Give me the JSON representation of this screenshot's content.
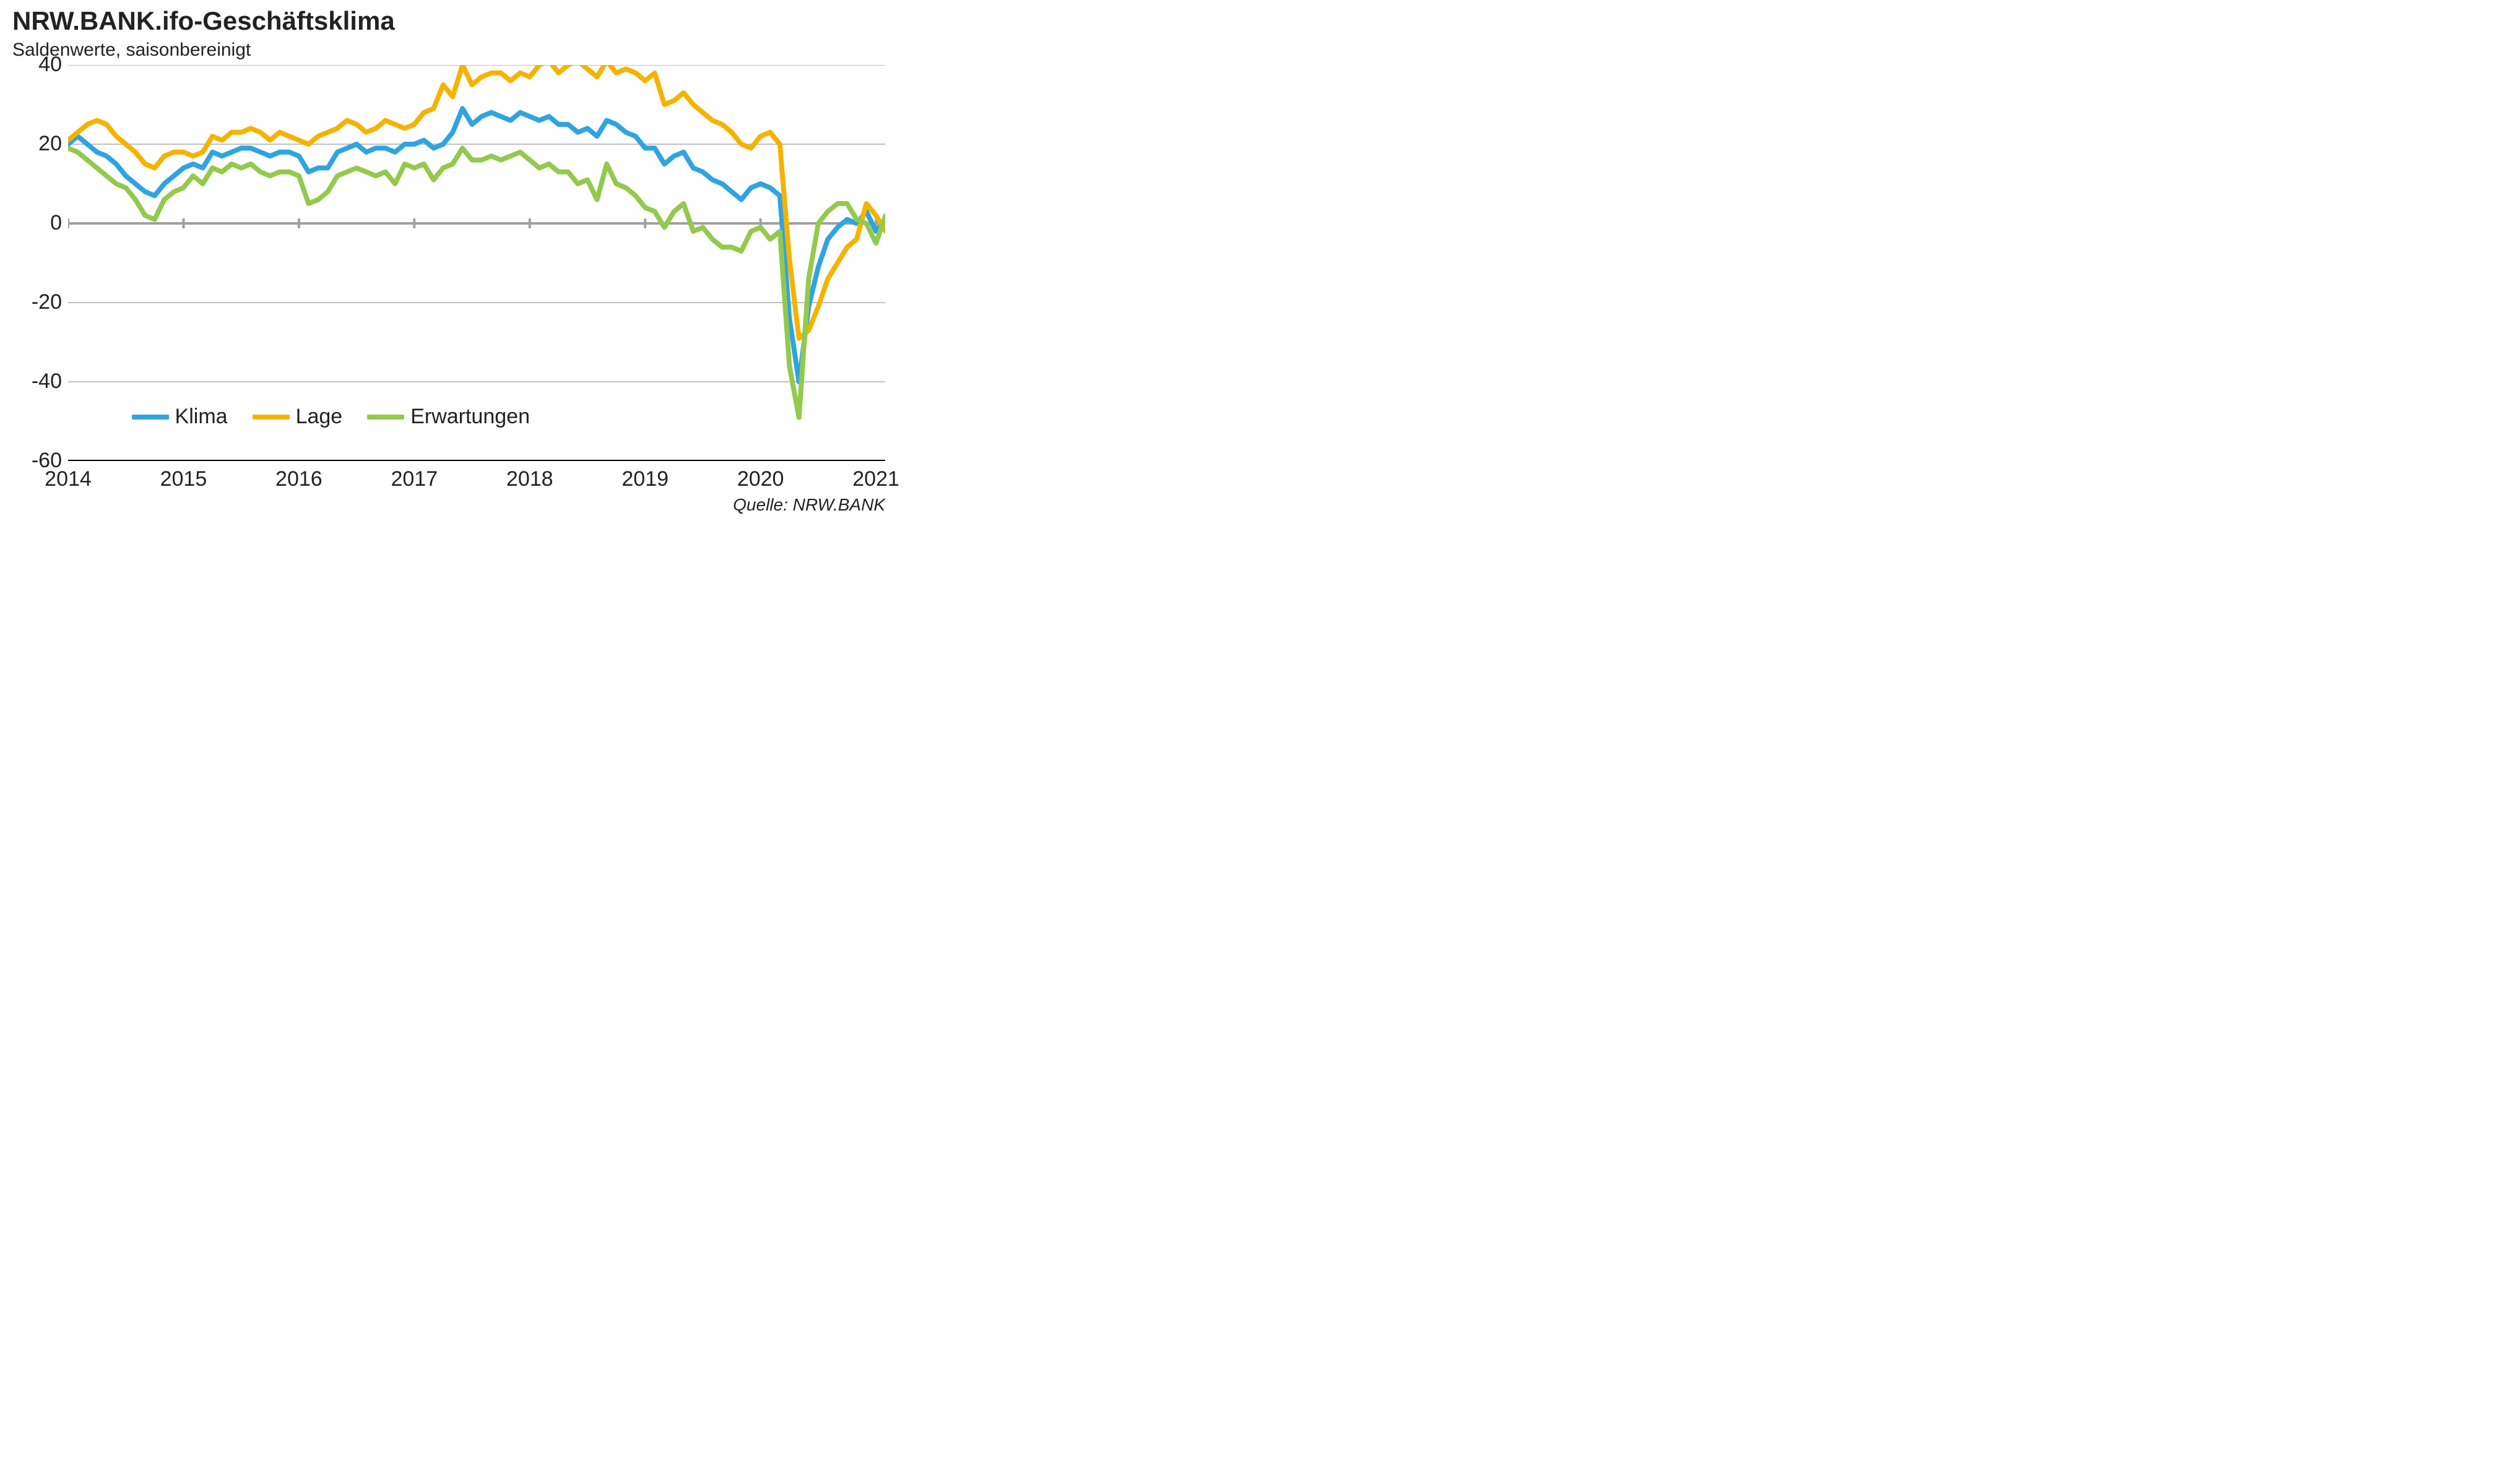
{
  "title": "NRW.BANK.ifo-Geschäftsklima",
  "subtitle": "Saldenwerte, saisonbereinigt",
  "source": "Quelle: NRW.BANK",
  "chart": {
    "type": "line",
    "background_color": "#ffffff",
    "grid_color": "#c0c0c0",
    "zero_line_color": "#a0a0a0",
    "axis_color": "#000000",
    "title_fontsize": 42,
    "subtitle_fontsize": 30,
    "tick_fontsize": 34,
    "legend_fontsize": 34,
    "source_fontsize": 28,
    "line_width": 8,
    "x": {
      "min": 2014.0,
      "max": 2021.08,
      "ticks": [
        2014,
        2015,
        2016,
        2017,
        2018,
        2019,
        2020,
        2021
      ],
      "tick_labels": [
        "2014",
        "2015",
        "2016",
        "2017",
        "2018",
        "2019",
        "2020",
        "2021"
      ]
    },
    "y": {
      "min": -60,
      "max": 40,
      "ticks": [
        -60,
        -40,
        -20,
        0,
        20,
        40
      ],
      "tick_labels": [
        "-60",
        "-40",
        "-20",
        "0",
        "20",
        "40"
      ]
    },
    "legend": {
      "position_year": 2014.55,
      "position_value": -49
    },
    "series": [
      {
        "key": "klima",
        "label": "Klima",
        "color": "#2fa4e0",
        "x": [
          2014.0,
          2014.083,
          2014.167,
          2014.25,
          2014.333,
          2014.417,
          2014.5,
          2014.583,
          2014.667,
          2014.75,
          2014.833,
          2014.917,
          2015.0,
          2015.083,
          2015.167,
          2015.25,
          2015.333,
          2015.417,
          2015.5,
          2015.583,
          2015.667,
          2015.75,
          2015.833,
          2015.917,
          2016.0,
          2016.083,
          2016.167,
          2016.25,
          2016.333,
          2016.417,
          2016.5,
          2016.583,
          2016.667,
          2016.75,
          2016.833,
          2016.917,
          2017.0,
          2017.083,
          2017.167,
          2017.25,
          2017.333,
          2017.417,
          2017.5,
          2017.583,
          2017.667,
          2017.75,
          2017.833,
          2017.917,
          2018.0,
          2018.083,
          2018.167,
          2018.25,
          2018.333,
          2018.417,
          2018.5,
          2018.583,
          2018.667,
          2018.75,
          2018.833,
          2018.917,
          2019.0,
          2019.083,
          2019.167,
          2019.25,
          2019.333,
          2019.417,
          2019.5,
          2019.583,
          2019.667,
          2019.75,
          2019.833,
          2019.917,
          2020.0,
          2020.083,
          2020.167,
          2020.25,
          2020.333,
          2020.417,
          2020.5,
          2020.583,
          2020.667,
          2020.75,
          2020.833,
          2020.917,
          2021.0,
          2021.083
        ],
        "y": [
          20,
          22,
          20,
          18,
          17,
          15,
          12,
          10,
          8,
          7,
          10,
          12,
          14,
          15,
          14,
          18,
          17,
          18,
          19,
          19,
          18,
          17,
          18,
          18,
          17,
          13,
          14,
          14,
          18,
          19,
          20,
          18,
          19,
          19,
          18,
          20,
          20,
          21,
          19,
          20,
          23,
          29,
          25,
          27,
          28,
          27,
          26,
          28,
          27,
          26,
          27,
          25,
          25,
          23,
          24,
          22,
          26,
          25,
          23,
          22,
          19,
          19,
          15,
          17,
          18,
          14,
          13,
          11,
          10,
          8,
          6,
          9,
          10,
          9,
          7,
          -24,
          -40,
          -21,
          -11,
          -4,
          -1,
          1,
          0,
          3,
          -2,
          1
        ]
      },
      {
        "key": "lage",
        "label": "Lage",
        "color": "#f5b300",
        "x": [
          2014.0,
          2014.083,
          2014.167,
          2014.25,
          2014.333,
          2014.417,
          2014.5,
          2014.583,
          2014.667,
          2014.75,
          2014.833,
          2014.917,
          2015.0,
          2015.083,
          2015.167,
          2015.25,
          2015.333,
          2015.417,
          2015.5,
          2015.583,
          2015.667,
          2015.75,
          2015.833,
          2015.917,
          2016.0,
          2016.083,
          2016.167,
          2016.25,
          2016.333,
          2016.417,
          2016.5,
          2016.583,
          2016.667,
          2016.75,
          2016.833,
          2016.917,
          2017.0,
          2017.083,
          2017.167,
          2017.25,
          2017.333,
          2017.417,
          2017.5,
          2017.583,
          2017.667,
          2017.75,
          2017.833,
          2017.917,
          2018.0,
          2018.083,
          2018.167,
          2018.25,
          2018.333,
          2018.417,
          2018.5,
          2018.583,
          2018.667,
          2018.75,
          2018.833,
          2018.917,
          2019.0,
          2019.083,
          2019.167,
          2019.25,
          2019.333,
          2019.417,
          2019.5,
          2019.583,
          2019.667,
          2019.75,
          2019.833,
          2019.917,
          2020.0,
          2020.083,
          2020.167,
          2020.25,
          2020.333,
          2020.417,
          2020.5,
          2020.583,
          2020.667,
          2020.75,
          2020.833,
          2020.917,
          2021.0,
          2021.083
        ],
        "y": [
          21,
          23,
          25,
          26,
          25,
          22,
          20,
          18,
          15,
          14,
          17,
          18,
          18,
          17,
          18,
          22,
          21,
          23,
          23,
          24,
          23,
          21,
          23,
          22,
          21,
          20,
          22,
          23,
          24,
          26,
          25,
          23,
          24,
          26,
          25,
          24,
          25,
          28,
          29,
          35,
          32,
          40,
          35,
          37,
          38,
          38,
          36,
          38,
          37,
          40,
          41,
          38,
          40,
          41,
          39,
          37,
          41,
          38,
          39,
          38,
          36,
          38,
          30,
          31,
          33,
          30,
          28,
          26,
          25,
          23,
          20,
          19,
          22,
          23,
          20,
          -9,
          -29,
          -27,
          -21,
          -14,
          -10,
          -6,
          -4,
          5,
          2,
          -2
        ]
      },
      {
        "key": "erwartungen",
        "label": "Erwartungen",
        "color": "#93c94d",
        "x": [
          2014.0,
          2014.083,
          2014.167,
          2014.25,
          2014.333,
          2014.417,
          2014.5,
          2014.583,
          2014.667,
          2014.75,
          2014.833,
          2014.917,
          2015.0,
          2015.083,
          2015.167,
          2015.25,
          2015.333,
          2015.417,
          2015.5,
          2015.583,
          2015.667,
          2015.75,
          2015.833,
          2015.917,
          2016.0,
          2016.083,
          2016.167,
          2016.25,
          2016.333,
          2016.417,
          2016.5,
          2016.583,
          2016.667,
          2016.75,
          2016.833,
          2016.917,
          2017.0,
          2017.083,
          2017.167,
          2017.25,
          2017.333,
          2017.417,
          2017.5,
          2017.583,
          2017.667,
          2017.75,
          2017.833,
          2017.917,
          2018.0,
          2018.083,
          2018.167,
          2018.25,
          2018.333,
          2018.417,
          2018.5,
          2018.583,
          2018.667,
          2018.75,
          2018.833,
          2018.917,
          2019.0,
          2019.083,
          2019.167,
          2019.25,
          2019.333,
          2019.417,
          2019.5,
          2019.583,
          2019.667,
          2019.75,
          2019.833,
          2019.917,
          2020.0,
          2020.083,
          2020.167,
          2020.25,
          2020.333,
          2020.417,
          2020.5,
          2020.583,
          2020.667,
          2020.75,
          2020.833,
          2020.917,
          2021.0,
          2021.083
        ],
        "y": [
          19,
          18,
          16,
          14,
          12,
          10,
          9,
          6,
          2,
          1,
          6,
          8,
          9,
          12,
          10,
          14,
          13,
          15,
          14,
          15,
          13,
          12,
          13,
          13,
          12,
          5,
          6,
          8,
          12,
          13,
          14,
          13,
          12,
          13,
          10,
          15,
          14,
          15,
          11,
          14,
          15,
          19,
          16,
          16,
          17,
          16,
          17,
          18,
          16,
          14,
          15,
          13,
          13,
          10,
          11,
          6,
          15,
          10,
          9,
          7,
          4,
          3,
          -1,
          3,
          5,
          -2,
          -1,
          -4,
          -6,
          -6,
          -7,
          -2,
          -1,
          -4,
          -2,
          -36,
          -49,
          -14,
          0,
          3,
          5,
          5,
          1,
          0,
          -5,
          2
        ]
      }
    ]
  }
}
